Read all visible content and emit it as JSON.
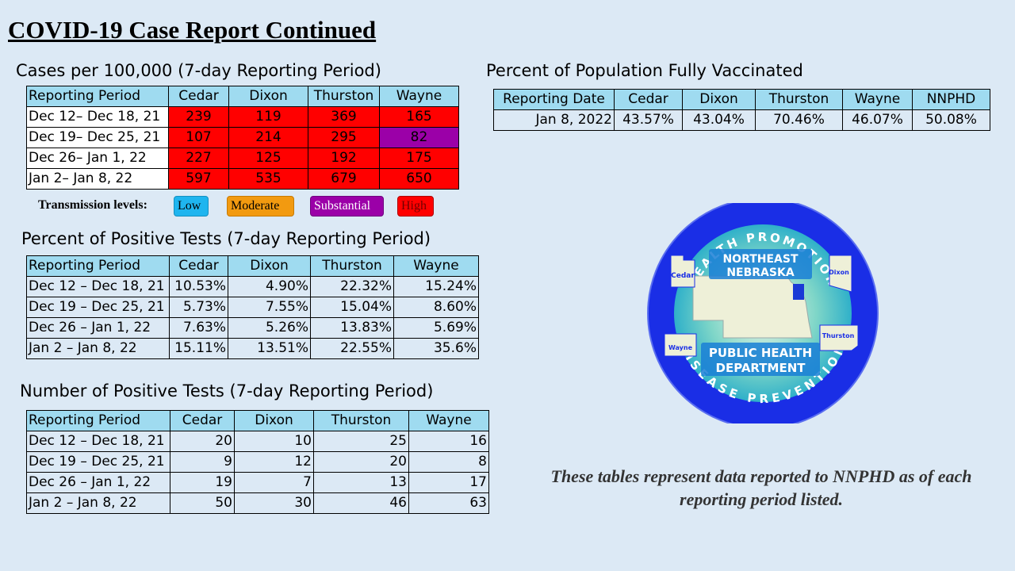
{
  "title": "COVID-19 Case Report Continued",
  "cases": {
    "title": "Cases per 100,000 (7-day Reporting Period)",
    "headers": [
      "Reporting Period",
      "Cedar",
      "Dixon",
      "Thurston",
      "Wayne"
    ],
    "rows": [
      [
        "Dec 12– Dec 18, 21",
        "239",
        "119",
        "369",
        "165"
      ],
      [
        "Dec 19– Dec 25, 21",
        "107",
        "214",
        "295",
        "82"
      ],
      [
        "Dec 26– Jan 1, 22",
        "227",
        "125",
        "192",
        "175"
      ],
      [
        "Jan 2– Jan 8, 22",
        "597",
        "535",
        "679",
        "650"
      ]
    ],
    "cell_levels": [
      [
        "high",
        "high",
        "high",
        "high"
      ],
      [
        "high",
        "high",
        "high",
        "substantial"
      ],
      [
        "high",
        "high",
        "high",
        "high"
      ],
      [
        "high",
        "high",
        "high",
        "high"
      ]
    ]
  },
  "legend": {
    "label": "Transmission levels:",
    "items": [
      {
        "label": "Low",
        "color": "#1fb5ef"
      },
      {
        "label": "Moderate",
        "color": "#f29a10"
      },
      {
        "label": "Substantial",
        "color": "#9b00a8"
      },
      {
        "label": "High",
        "color": "#ff0000"
      }
    ]
  },
  "percent_positive": {
    "title": "Percent of Positive Tests (7-day Reporting Period)",
    "headers": [
      "Reporting Period",
      "Cedar",
      "Dixon",
      "Thurston",
      "Wayne"
    ],
    "rows": [
      [
        "Dec 12 – Dec 18, 21",
        "10.53%",
        "4.90%",
        "22.32%",
        "15.24%"
      ],
      [
        "Dec 19 – Dec 25, 21",
        "5.73%",
        "7.55%",
        "15.04%",
        "8.60%"
      ],
      [
        "Dec 26 – Jan 1, 22",
        "7.63%",
        "5.26%",
        "13.83%",
        "5.69%"
      ],
      [
        "Jan 2 – Jan 8, 22",
        "15.11%",
        "13.51%",
        "22.55%",
        "35.6%"
      ]
    ]
  },
  "number_positive": {
    "title": "Number of Positive Tests (7-day Reporting Period)",
    "headers": [
      "Reporting Period",
      "Cedar",
      "Dixon",
      "Thurston",
      "Wayne"
    ],
    "rows": [
      [
        "Dec 12 – Dec 18, 21",
        "20",
        "10",
        "25",
        "16"
      ],
      [
        "Dec 19 – Dec 25, 21",
        "9",
        "12",
        "20",
        "8"
      ],
      [
        "Dec 26 – Jan 1, 22",
        "19",
        "7",
        "13",
        "17"
      ],
      [
        "Jan 2 – Jan 8, 22",
        "50",
        "30",
        "46",
        "63"
      ]
    ]
  },
  "vaccinated": {
    "title": "Percent of Population Fully Vaccinated",
    "headers": [
      "Reporting Date",
      "Cedar",
      "Dixon",
      "Thurston",
      "Wayne",
      "NNPHD"
    ],
    "row": [
      "Jan 8, 2022",
      "43.57%",
      "43.04%",
      "70.46%",
      "46.07%",
      "50.08%"
    ]
  },
  "logo": {
    "top_text": "HEALTH PROMOTION",
    "center_line1": "NORTHEAST",
    "center_line2": "NEBRASKA",
    "lower_line1": "PUBLIC HEALTH",
    "lower_line2": "DEPARTMENT",
    "bottom_text": "DISEASE PREVENTION",
    "counties": [
      "Cedar",
      "Dixon",
      "Wayne",
      "Thurston"
    ]
  },
  "note": "These tables represent data reported to NNPHD as of each reporting period listed."
}
